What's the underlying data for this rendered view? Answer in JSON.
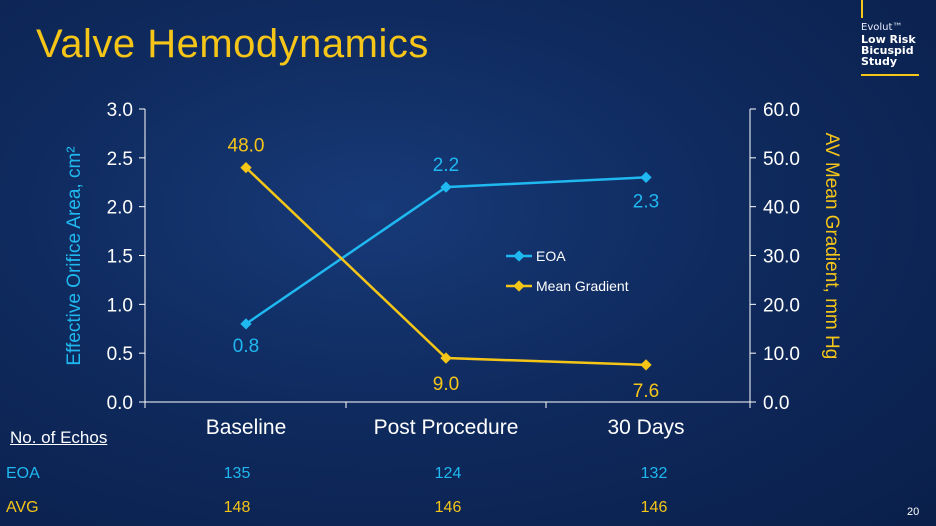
{
  "title": "Valve Hemodynamics",
  "logo": {
    "brand": "Evolut™",
    "lines": [
      "Low Risk",
      "Bicuspid",
      "Study"
    ]
  },
  "colors": {
    "eoa": "#1fb8f0",
    "gradient": "#f5c518",
    "axis": "#ffffff"
  },
  "chart_data": {
    "type": "line",
    "categories": [
      "Baseline",
      "Post Procedure",
      "30 Days"
    ],
    "series": [
      {
        "name": "EOA",
        "axis": "left",
        "values": [
          0.8,
          2.2,
          2.3
        ],
        "labels": [
          "0.8",
          "2.2",
          "2.3"
        ],
        "color": "#1fb8f0"
      },
      {
        "name": "Mean Gradient",
        "axis": "right",
        "values": [
          48.0,
          9.0,
          7.6
        ],
        "labels": [
          "48.0",
          "9.0",
          "7.6"
        ],
        "color": "#f5c518"
      }
    ],
    "ylabel": "Effective Orifice Area, cm²",
    "y2label": "AV Mean Gradient, mm Hg",
    "ylim": [
      0,
      3.0
    ],
    "y2lim": [
      0,
      60.0
    ],
    "yticks": [
      "0.0",
      "0.5",
      "1.0",
      "1.5",
      "2.0",
      "2.5",
      "3.0"
    ],
    "y2ticks": [
      "0.0",
      "10.0",
      "20.0",
      "30.0",
      "40.0",
      "50.0",
      "60.0"
    ],
    "legend_position": "center-right",
    "grid": false
  },
  "echos": {
    "title": "No. of Echos",
    "rows": [
      {
        "label": "EOA",
        "values": [
          "135",
          "124",
          "132"
        ]
      },
      {
        "label": "AVG",
        "values": [
          "148",
          "146",
          "146"
        ]
      }
    ]
  },
  "slide_number": "20"
}
